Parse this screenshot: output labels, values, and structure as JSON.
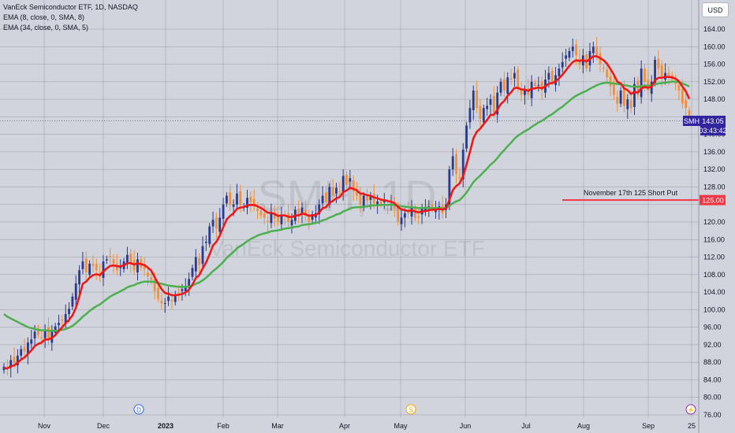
{
  "currency_label": "USD",
  "legend": {
    "title": "VanEck Semiconductor ETF, 1D, NASDAQ",
    "ema_fast": "EMA (8, close, 0, SMA, 8)",
    "ema_slow": "EMA (34, close, 0, SMA, 5)"
  },
  "watermark": {
    "symbol": "SMH, 1D",
    "name": "VanEck Semiconductor ETF"
  },
  "price_tag": {
    "symbol": "SMH",
    "price": "143.05",
    "countdown": "03:43:42"
  },
  "annotation": {
    "text": "November 17th 125 Short Put",
    "level_label": "125.00"
  },
  "event_markers": {
    "dividend": "D",
    "split": "S",
    "earnings": "⚡"
  },
  "colors": {
    "up": "#2a3a8e",
    "down": "#f0903a",
    "ema_fast": "#f21414",
    "ema_slow": "#4caf50",
    "annotation": "#f23645",
    "price_tag": "#3124a0",
    "background": "#d1d4dc"
  },
  "chart_data": {
    "type": "candlestick",
    "title": "VanEck Semiconductor ETF, 1D, NASDAQ",
    "ylim": [
      76,
      166
    ],
    "y_ticks": [
      "164.00",
      "160.00",
      "156.00",
      "152.00",
      "148.00",
      "144.00",
      "140.00",
      "136.00",
      "132.00",
      "128.00",
      "124.00",
      "120.00",
      "116.00",
      "112.00",
      "108.00",
      "104.00",
      "100.00",
      "96.00",
      "92.00",
      "88.00",
      "84.00",
      "80.00",
      "76.00"
    ],
    "x_ticks": [
      "Nov",
      "Dec",
      "2023",
      "Feb",
      "Mar",
      "Apr",
      "May",
      "Jun",
      "Jul",
      "Aug",
      "Sep",
      "25"
    ],
    "closes": [
      87,
      86.5,
      88.5,
      87.8,
      89.5,
      91,
      90.5,
      92.5,
      93.2,
      95,
      94.2,
      93.5,
      95.5,
      93.2,
      95,
      96.2,
      97,
      97.5,
      99,
      100.2,
      103,
      106,
      109,
      111,
      108.5,
      110.5,
      110,
      109,
      107.5,
      111,
      111.5,
      112,
      110.5,
      109,
      110,
      111,
      112.5,
      110.6,
      109,
      111.5,
      109.6,
      109.2,
      107.6,
      106.8,
      104.2,
      102.5,
      101.5,
      101.5,
      103,
      102,
      103.5,
      103.5,
      104.7,
      105,
      107,
      109.5,
      112,
      110.2,
      114.5,
      115.5,
      119,
      120.5,
      118.5,
      121,
      124,
      126,
      124,
      124,
      126.5,
      124,
      123.5,
      125.5,
      124.5,
      123.5,
      122.5,
      121.5,
      121,
      120,
      122,
      120.8,
      120,
      121.6,
      121.5,
      120,
      120.5,
      122.8,
      121.2,
      123.3,
      121.4,
      120,
      121.8,
      122,
      124,
      126,
      124.5,
      128,
      126,
      127.8,
      127,
      130.5,
      128.5,
      130,
      127,
      126,
      124,
      126,
      124.8,
      125.7,
      124.2,
      124.7,
      124,
      124.8,
      124,
      124,
      123,
      120,
      121,
      122,
      122,
      123.5,
      121,
      121,
      123,
      123,
      123.5,
      123,
      123,
      123.6,
      122,
      124,
      132,
      135,
      131,
      130,
      136.5,
      142,
      146,
      150,
      146,
      143.5,
      146,
      146.5,
      148,
      145,
      149.5,
      152,
      150,
      153,
      152.5,
      154,
      150.5,
      149,
      150,
      149,
      152,
      151,
      151.3,
      150,
      152.5,
      154,
      152,
      153.5,
      155,
      156.5,
      158,
      159,
      160,
      158,
      156,
      158,
      155,
      159,
      160,
      158,
      156,
      155,
      153,
      151,
      149,
      147,
      150,
      146.5,
      148,
      146,
      151.5,
      149,
      155,
      152,
      150,
      152,
      157,
      155,
      153,
      154,
      153,
      152.5,
      151.5,
      150,
      147,
      146,
      143.05
    ],
    "ema_fast": [
      86.7,
      86.6,
      87.1,
      87.3,
      87.9,
      88.6,
      89.1,
      89.9,
      90.7,
      91.7,
      92.2,
      92.5,
      93.2,
      93.2,
      93.6,
      94.2,
      95.1,
      96,
      96.9,
      97.7,
      98.7,
      100.4,
      103,
      105.9,
      106.4,
      107.3,
      107.9,
      108.1,
      107.9,
      108.7,
      109.4,
      110,
      110.1,
      109.9,
      109.9,
      110.1,
      110.6,
      110.6,
      110.3,
      110.6,
      110.4,
      110.2,
      109.6,
      108.9,
      107.4,
      106,
      104.7,
      103.8,
      103.6,
      103.3,
      103.3,
      103.4,
      103.6,
      103.9,
      104.6,
      105.7,
      107.2,
      107.9,
      109.4,
      110.8,
      112.6,
      114.6,
      115.5,
      116.9,
      118.8,
      120.6,
      121.4,
      122,
      123,
      123.3,
      123.4,
      123.8,
      123.9,
      123.9,
      123.6,
      123.2,
      122.7,
      122.1,
      122.1,
      121.8,
      121.4,
      121.5,
      121.5,
      121.2,
      121.1,
      121.5,
      121.5,
      121.9,
      121.8,
      121.4,
      121.5,
      121.6,
      122.2,
      123.1,
      123.4,
      124.4,
      124.8,
      125.4,
      125.7,
      126.8,
      127.2,
      127.8,
      127.6,
      127.2,
      126.5,
      126.4,
      126.1,
      126,
      125.6,
      125.4,
      125.1,
      125,
      124.8,
      124.6,
      124.3,
      123.4,
      122.9,
      122.7,
      122.5,
      122.7,
      122.4,
      122.2,
      122.4,
      122.5,
      122.7,
      122.8,
      122.8,
      123,
      122.8,
      123.1,
      125.1,
      127.3,
      128.2,
      128.8,
      130.5,
      133.1,
      136,
      139.1,
      140.6,
      141.3,
      142.3,
      143.3,
      144.4,
      144.5,
      145.6,
      146.9,
      147.6,
      148.8,
      149.6,
      150.6,
      150.6,
      150.2,
      150.2,
      149.9,
      150.4,
      150.5,
      150.7,
      150.5,
      150.9,
      151.6,
      151.7,
      152.1,
      152.8,
      153.6,
      154.6,
      155.6,
      156.5,
      156.9,
      156.7,
      157,
      156.6,
      157.2,
      157.8,
      157.8,
      157.4,
      156.9,
      156.1,
      154.9,
      153.6,
      152,
      151.6,
      150.5,
      150.1,
      149.2,
      149.7,
      149.5,
      150.5,
      150.8,
      150.6,
      150.9,
      152.3,
      152.9,
      152.9,
      153.1,
      153.1,
      153,
      152.7,
      152.1,
      150.9,
      149.8,
      148.1
    ],
    "ema_slow": [
      99,
      98.4,
      98,
      97.6,
      97.2,
      96.8,
      96.4,
      96,
      95.8,
      95.6,
      95.4,
      95.3,
      95.3,
      95.2,
      95.2,
      95.2,
      95.3,
      95.4,
      95.6,
      95.9,
      96.3,
      96.9,
      97.6,
      98.4,
      99,
      99.7,
      100.3,
      100.8,
      101.2,
      101.8,
      102.4,
      103,
      103.4,
      103.8,
      104.2,
      104.6,
      105.1,
      105.4,
      105.6,
      106,
      106.2,
      106.4,
      106.4,
      106.4,
      106.3,
      106.1,
      105.9,
      105.7,
      105.5,
      105.4,
      105.3,
      105.2,
      105.2,
      105.2,
      105.3,
      105.5,
      105.9,
      106.2,
      106.7,
      107.3,
      108,
      108.8,
      109.4,
      110.1,
      110.9,
      111.8,
      112.5,
      113.2,
      114,
      114.5,
      115,
      115.6,
      116.1,
      116.5,
      116.9,
      117.2,
      117.4,
      117.6,
      117.9,
      118,
      118.1,
      118.3,
      118.5,
      118.6,
      118.7,
      118.9,
      119,
      119.3,
      119.4,
      119.5,
      119.6,
      119.8,
      120,
      120.4,
      120.6,
      121,
      121.3,
      121.7,
      121.9,
      122.4,
      122.7,
      123.1,
      123.3,
      123.4,
      123.4,
      123.5,
      123.6,
      123.7,
      123.8,
      123.8,
      123.9,
      123.9,
      123.9,
      123.9,
      123.9,
      123.7,
      123.6,
      123.5,
      123.4,
      123.4,
      123.3,
      123.2,
      123.2,
      123.2,
      123.2,
      123.2,
      123.2,
      123.2,
      123.1,
      123.2,
      123.7,
      124.3,
      124.7,
      125,
      125.8,
      126.7,
      127.9,
      129.1,
      129.9,
      130.6,
      131.4,
      132.2,
      133.1,
      133.7,
      134.6,
      135.6,
      136.4,
      137.3,
      138.1,
      139,
      139.7,
      140.2,
      140.7,
      141.1,
      141.7,
      142.2,
      142.7,
      143.1,
      143.6,
      144.2,
      144.6,
      145.2,
      145.8,
      146.3,
      147,
      147.6,
      148.3,
      148.8,
      149.2,
      149.6,
      149.9,
      150.4,
      150.8,
      151.2,
      151.5,
      151.7,
      151.8,
      151.7,
      151.6,
      151.5,
      151.4,
      151.2,
      151.1,
      150.9,
      150.9,
      150.8,
      151,
      151.1,
      151.1,
      151.1,
      151.4,
      151.6,
      151.7,
      151.8,
      151.9,
      152,
      152,
      151.9,
      151.6,
      151.3,
      150.9
    ],
    "annotation_level": 125
  }
}
